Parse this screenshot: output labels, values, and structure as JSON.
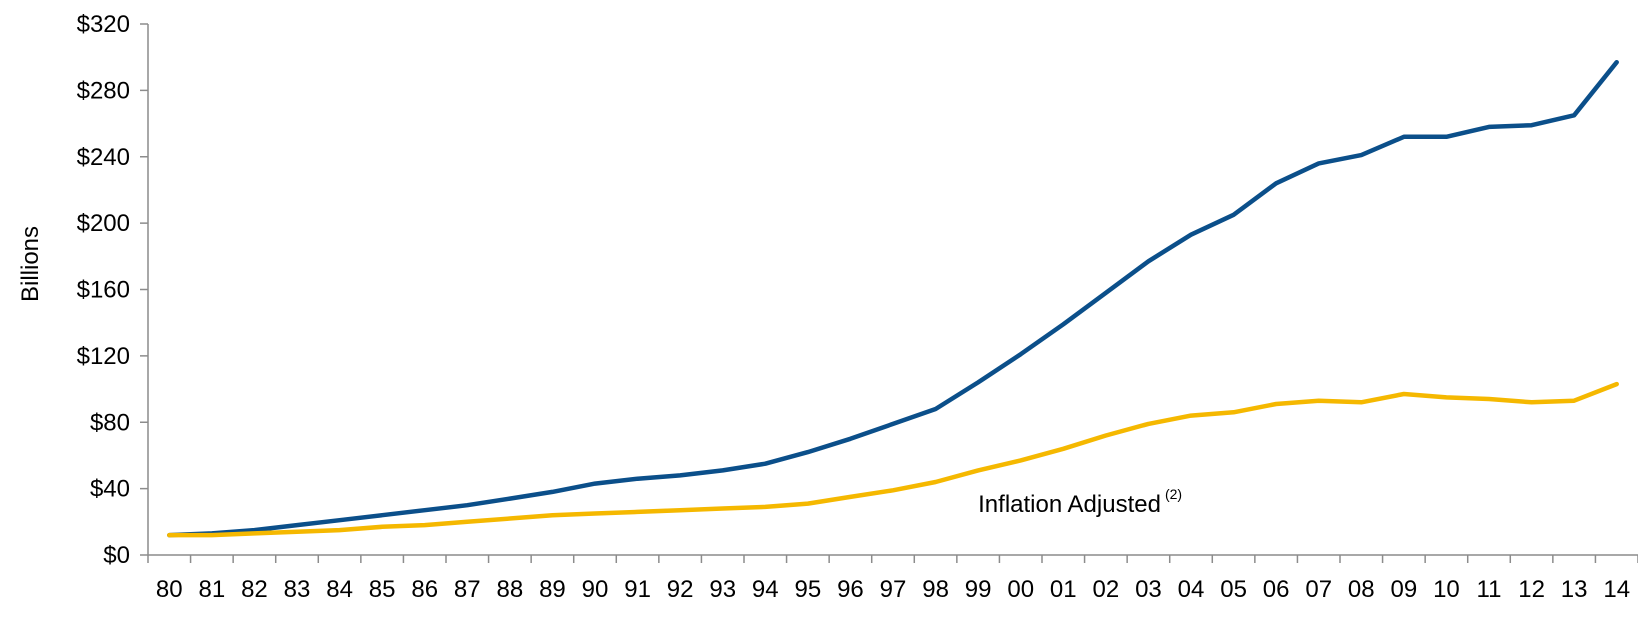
{
  "chart_data": {
    "type": "line",
    "title": "",
    "xlabel": "",
    "ylabel": "Billions",
    "ylim": [
      0,
      320
    ],
    "y_ticks": [
      0,
      40,
      80,
      120,
      160,
      200,
      240,
      280,
      320
    ],
    "y_tick_labels": [
      "$0",
      "$40",
      "$80",
      "$120",
      "$160",
      "$200",
      "$240",
      "$280",
      "$320"
    ],
    "categories": [
      "80",
      "81",
      "82",
      "83",
      "84",
      "85",
      "86",
      "87",
      "88",
      "89",
      "90",
      "91",
      "92",
      "93",
      "94",
      "95",
      "96",
      "97",
      "98",
      "99",
      "00",
      "01",
      "02",
      "03",
      "04",
      "05",
      "06",
      "07",
      "08",
      "09",
      "10",
      "11",
      "12",
      "13",
      "14"
    ],
    "grid": false,
    "series": [
      {
        "color": "#0b4f8a",
        "values": [
          12,
          13,
          15,
          18,
          21,
          24,
          27,
          30,
          34,
          38,
          43,
          46,
          48,
          51,
          55,
          62,
          70,
          79,
          88,
          104,
          121,
          139,
          158,
          177,
          193,
          205,
          224,
          236,
          241,
          252,
          252,
          258,
          259,
          265,
          297
        ]
      },
      {
        "color": "#f5b800",
        "values": [
          12,
          12,
          13,
          14,
          15,
          17,
          18,
          20,
          22,
          24,
          25,
          26,
          27,
          28,
          29,
          31,
          35,
          39,
          44,
          51,
          57,
          64,
          72,
          79,
          84,
          86,
          91,
          93,
          92,
          97,
          95,
          94,
          92,
          93,
          103
        ]
      }
    ],
    "annotations": [
      {
        "text": "Inflation Adjusted",
        "superscript": "(2)",
        "x_category": "99",
        "y": 26
      }
    ]
  }
}
